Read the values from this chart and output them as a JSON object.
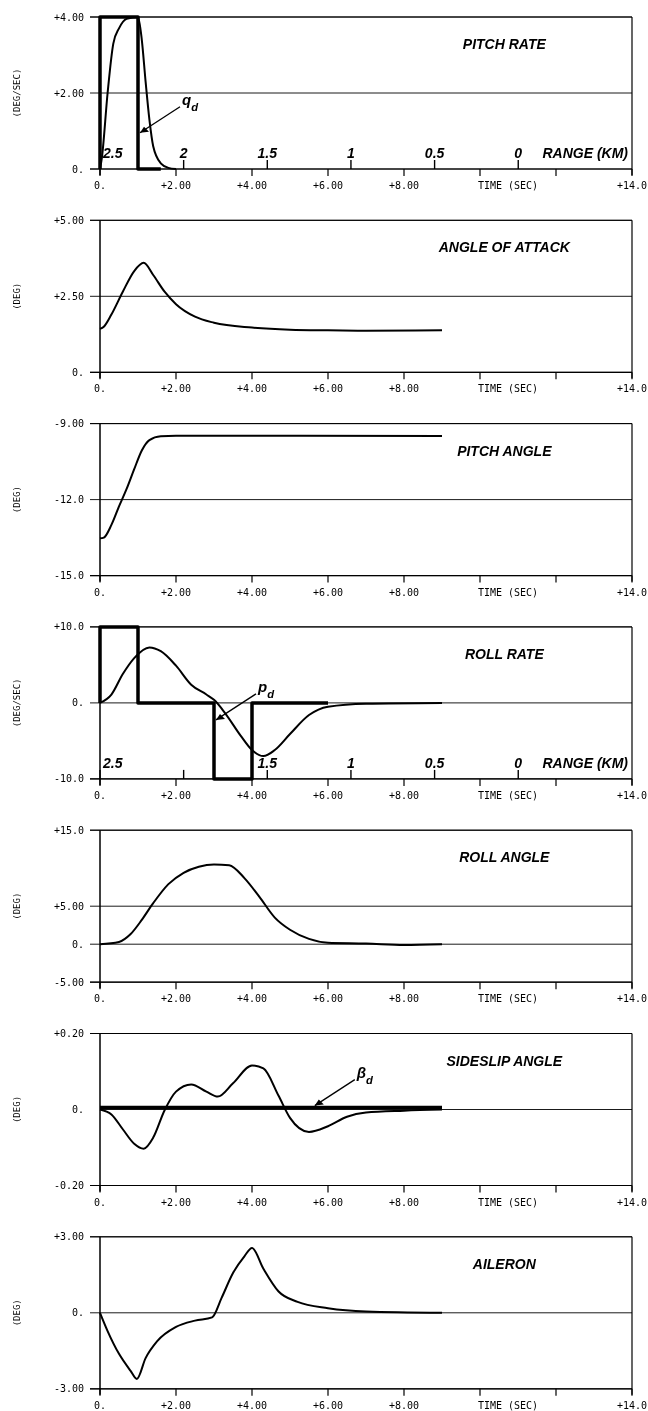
{
  "chart_data": [
    {
      "type": "line",
      "title": "PITCH RATE",
      "ylabel": "(DEG/SEC)",
      "xlabel": "TIME (SEC)",
      "xlim": [
        0,
        14
      ],
      "xticks": [
        {
          "value": 0,
          "label": "0."
        },
        {
          "value": 2,
          "label": "+2.00"
        },
        {
          "value": 4,
          "label": "+4.00"
        },
        {
          "value": 6,
          "label": "+6.00"
        },
        {
          "value": 8,
          "label": "+8.00"
        },
        {
          "value": 10,
          "label": null
        },
        {
          "value": 12,
          "label": null
        },
        {
          "value": 14,
          "label": "+14.0"
        }
      ],
      "ylim": [
        0,
        4
      ],
      "yticks": [
        {
          "value": 0,
          "label": "0."
        },
        {
          "value": 2,
          "label": "+2.00"
        },
        {
          "value": 4,
          "label": "+4.00"
        }
      ],
      "grid": "y",
      "x2lim": [
        2.5,
        -0.68
      ],
      "x2ticks": [
        2.5,
        2,
        1.5,
        1,
        0.5,
        0
      ],
      "x2label": "RANGE (KM)",
      "annotations": [
        {
          "text": "q$_{d}$",
          "x": 1,
          "y": 0.9
        }
      ],
      "series": [
        {
          "type": "step",
          "color": "#000000",
          "x": [
            0,
            0,
            1,
            1.6
          ],
          "values": [
            0,
            4,
            0,
            0
          ]
        },
        {
          "color": "#000000",
          "x": [
            0,
            0.05,
            0.2,
            0.35,
            0.5,
            0.7,
            1,
            1.1,
            1.2,
            1.3,
            1.4,
            1.6,
            1.8,
            2
          ],
          "values": [
            0,
            0.3,
            2,
            3.3,
            3.7,
            3.95,
            4,
            3.4,
            2.3,
            1.3,
            0.6,
            0.15,
            0.03,
            0
          ]
        }
      ]
    },
    {
      "type": "line",
      "title": "ANGLE OF ATTACK",
      "ylabel": "(DEG)",
      "xlabel": "TIME (SEC)",
      "xlim": [
        0,
        14
      ],
      "xticks": [
        {
          "value": 0,
          "label": "0."
        },
        {
          "value": 2,
          "label": "+2.00"
        },
        {
          "value": 4,
          "label": "+4.00"
        },
        {
          "value": 6,
          "label": "+6.00"
        },
        {
          "value": 8,
          "label": "+8.00"
        },
        {
          "value": 10,
          "label": null
        },
        {
          "value": 12,
          "label": null
        },
        {
          "value": 14,
          "label": "+14.0"
        }
      ],
      "ylim": [
        0,
        5
      ],
      "yticks": [
        {
          "value": 0,
          "label": "0."
        },
        {
          "value": 2.5,
          "label": "+2.50"
        },
        {
          "value": 5,
          "label": "+5.00"
        }
      ],
      "grid": "y",
      "series": [
        {
          "color": "#000000",
          "x": [
            0,
            0.1,
            0.3,
            0.6,
            0.9,
            1.15,
            1.4,
            1.7,
            2,
            2.5,
            3,
            4,
            5,
            6,
            7,
            9
          ],
          "values": [
            1.43,
            1.5,
            1.9,
            2.65,
            3.33,
            3.6,
            3.2,
            2.65,
            2.24,
            1.83,
            1.63,
            1.47,
            1.4,
            1.38,
            1.37,
            1.38
          ]
        }
      ]
    },
    {
      "type": "line",
      "title": "PITCH ANGLE",
      "ylabel": "(DEG)",
      "xlabel": "TIME (SEC)",
      "xlim": [
        0,
        14
      ],
      "xticks": [
        {
          "value": 0,
          "label": "0."
        },
        {
          "value": 2,
          "label": "+2.00"
        },
        {
          "value": 4,
          "label": "+4.00"
        },
        {
          "value": 6,
          "label": "+6.00"
        },
        {
          "value": 8,
          "label": "+8.00"
        },
        {
          "value": 10,
          "label": null
        },
        {
          "value": 12,
          "label": null
        },
        {
          "value": 14,
          "label": "+14.0"
        }
      ],
      "ylim": [
        -15,
        -9
      ],
      "yticks": [
        {
          "value": -15,
          "label": "-15.0"
        },
        {
          "value": -12,
          "label": "-12.0"
        },
        {
          "value": -9,
          "label": "-9.00"
        }
      ],
      "grid": "y",
      "series": [
        {
          "color": "#000000",
          "x": [
            0,
            0.1,
            0.3,
            0.5,
            0.7,
            0.9,
            1.1,
            1.3,
            1.6,
            2,
            9
          ],
          "values": [
            -13.53,
            -13.5,
            -13,
            -12.27,
            -11.58,
            -10.8,
            -10.06,
            -9.65,
            -9.5,
            -9.48,
            -9.49
          ]
        }
      ]
    },
    {
      "type": "line",
      "title": "ROLL RATE",
      "ylabel": "(DEG/SEC)",
      "xlabel": "TIME (SEC)",
      "xlim": [
        0,
        14
      ],
      "xticks": [
        {
          "value": 0,
          "label": "0."
        },
        {
          "value": 2,
          "label": "+2.00"
        },
        {
          "value": 4,
          "label": "+4.00"
        },
        {
          "value": 6,
          "label": "+6.00"
        },
        {
          "value": 8,
          "label": "+8.00"
        },
        {
          "value": 10,
          "label": null
        },
        {
          "value": 12,
          "label": null
        },
        {
          "value": 14,
          "label": "+14.0"
        }
      ],
      "ylim": [
        -10,
        10
      ],
      "yticks": [
        {
          "value": -10,
          "label": "-10.0"
        },
        {
          "value": 0,
          "label": "0."
        },
        {
          "value": 10,
          "label": "+10.0"
        }
      ],
      "grid": "y",
      "x2lim": [
        2.5,
        -0.68
      ],
      "x2ticks": [
        2.5,
        {
          "value": 2,
          "label": null
        },
        1.5,
        1,
        0.5,
        0
      ],
      "x2label": "RANGE (KM)",
      "annotations": [
        {
          "text": "p$_{d}$",
          "x": 3,
          "y": -2.5
        }
      ],
      "series": [
        {
          "type": "step",
          "color": "#000000",
          "x": [
            0,
            0,
            1,
            3,
            4,
            6
          ],
          "values": [
            0,
            10,
            0,
            -10,
            0,
            0
          ]
        },
        {
          "color": "#000000",
          "x": [
            0,
            0.3,
            0.6,
            0.9,
            1.3,
            1.6,
            2,
            2.4,
            2.8,
            3,
            3.3,
            3.7,
            4,
            4.3,
            4.6,
            5,
            5.5,
            6,
            7,
            9
          ],
          "values": [
            0,
            1.1,
            3.8,
            5.9,
            7.3,
            6.8,
            4.9,
            2.4,
            1.1,
            0.4,
            -1.4,
            -4.3,
            -6.2,
            -7,
            -6.2,
            -4.1,
            -1.6,
            -0.5,
            -0.1,
            0
          ]
        }
      ]
    },
    {
      "type": "line",
      "title": "ROLL ANGLE",
      "ylabel": "(DEG)",
      "xlabel": "TIME (SEC)",
      "xlim": [
        0,
        14
      ],
      "xticks": [
        {
          "value": 0,
          "label": "0."
        },
        {
          "value": 2,
          "label": "+2.00"
        },
        {
          "value": 4,
          "label": "+4.00"
        },
        {
          "value": 6,
          "label": "+6.00"
        },
        {
          "value": 8,
          "label": "+8.00"
        },
        {
          "value": 10,
          "label": null
        },
        {
          "value": 12,
          "label": null
        },
        {
          "value": 14,
          "label": "+14.0"
        }
      ],
      "ylim": [
        -5,
        15
      ],
      "yticks": [
        {
          "value": -5,
          "label": "-5.00"
        },
        {
          "value": 0,
          "label": "0."
        },
        {
          "value": 5,
          "label": "+5.00"
        },
        {
          "value": 15,
          "label": "+15.0"
        }
      ],
      "grid": "y",
      "series": [
        {
          "color": "#000000",
          "x": [
            0,
            0.5,
            0.8,
            1.1,
            1.4,
            1.8,
            2.2,
            2.6,
            3,
            3.4,
            3.8,
            4.2,
            4.6,
            5,
            5.5,
            6,
            7,
            8,
            9
          ],
          "values": [
            0,
            0.3,
            1.3,
            3.2,
            5.4,
            7.9,
            9.4,
            10.2,
            10.5,
            10.4,
            8.7,
            6.2,
            3.5,
            1.9,
            0.7,
            0.2,
            0.1,
            -0.1,
            0
          ]
        }
      ]
    },
    {
      "type": "line",
      "title": "SIDESLIP ANGLE",
      "ylabel": "(DEG)",
      "xlabel": "TIME (SEC)",
      "xlim": [
        0,
        14
      ],
      "xticks": [
        {
          "value": 0,
          "label": "0."
        },
        {
          "value": 2,
          "label": "+2.00"
        },
        {
          "value": 4,
          "label": "+4.00"
        },
        {
          "value": 6,
          "label": "+6.00"
        },
        {
          "value": 8,
          "label": "+8.00"
        },
        {
          "value": 10,
          "label": null
        },
        {
          "value": 12,
          "label": null
        },
        {
          "value": 14,
          "label": "+14.0"
        }
      ],
      "ylim": [
        -0.2,
        0.2
      ],
      "yticks": [
        {
          "value": -0.2,
          "label": "-0.20"
        },
        {
          "value": 0,
          "label": "0."
        },
        {
          "value": 0.2,
          "label": "+0.20"
        }
      ],
      "ref_lines": [
        {
          "axis": "y",
          "value": 0
        }
      ],
      "annotations": [
        {
          "text": "β$_{d}$",
          "x": 5.6,
          "y": 0.005
        }
      ],
      "series": [
        {
          "type": "step",
          "color": "#000000",
          "x": [
            0,
            9
          ],
          "values": [
            0.005,
            0.005
          ]
        },
        {
          "color": "#000000",
          "x": [
            0,
            0.3,
            0.6,
            0.9,
            1.15,
            1.4,
            1.7,
            2,
            2.4,
            2.8,
            3.1,
            3.5,
            4,
            4.3,
            4.7,
            5,
            5.5,
            6,
            6.5,
            7,
            8,
            9
          ],
          "values": [
            0,
            -0.013,
            -0.052,
            -0.09,
            -0.103,
            -0.074,
            -0.002,
            0.047,
            0.066,
            0.047,
            0.034,
            0.069,
            0.116,
            0.108,
            0.036,
            -0.022,
            -0.059,
            -0.044,
            -0.019,
            -0.008,
            -0.003,
            0
          ]
        }
      ]
    },
    {
      "type": "line",
      "title": "AILERON",
      "ylabel": "(DEG)",
      "xlabel": "TIME (SEC)",
      "xlim": [
        0,
        14
      ],
      "xticks": [
        {
          "value": 0,
          "label": "0."
        },
        {
          "value": 2,
          "label": "+2.00"
        },
        {
          "value": 4,
          "label": "+4.00"
        },
        {
          "value": 6,
          "label": "+6.00"
        },
        {
          "value": 8,
          "label": "+8.00"
        },
        {
          "value": 10,
          "label": null
        },
        {
          "value": 12,
          "label": null
        },
        {
          "value": 14,
          "label": "+14.0"
        }
      ],
      "ylim": [
        -3,
        3
      ],
      "yticks": [
        {
          "value": -3,
          "label": "-3.00"
        },
        {
          "value": 0,
          "label": "0."
        },
        {
          "value": 3,
          "label": "+3.00"
        }
      ],
      "grid": "y",
      "series": [
        {
          "color": "#000000",
          "x": [
            0,
            0.2,
            0.5,
            0.8,
            0.97,
            1.2,
            1.5,
            2,
            2.5,
            2.95,
            3.2,
            3.5,
            3.8,
            4,
            4.3,
            4.7,
            5.2,
            6,
            7,
            9
          ],
          "values": [
            0,
            -0.72,
            -1.62,
            -2.28,
            -2.61,
            -1.79,
            -1.13,
            -0.56,
            -0.31,
            -0.18,
            0.59,
            1.57,
            2.23,
            2.56,
            1.74,
            0.84,
            0.43,
            0.18,
            0.05,
            0
          ]
        }
      ]
    }
  ]
}
